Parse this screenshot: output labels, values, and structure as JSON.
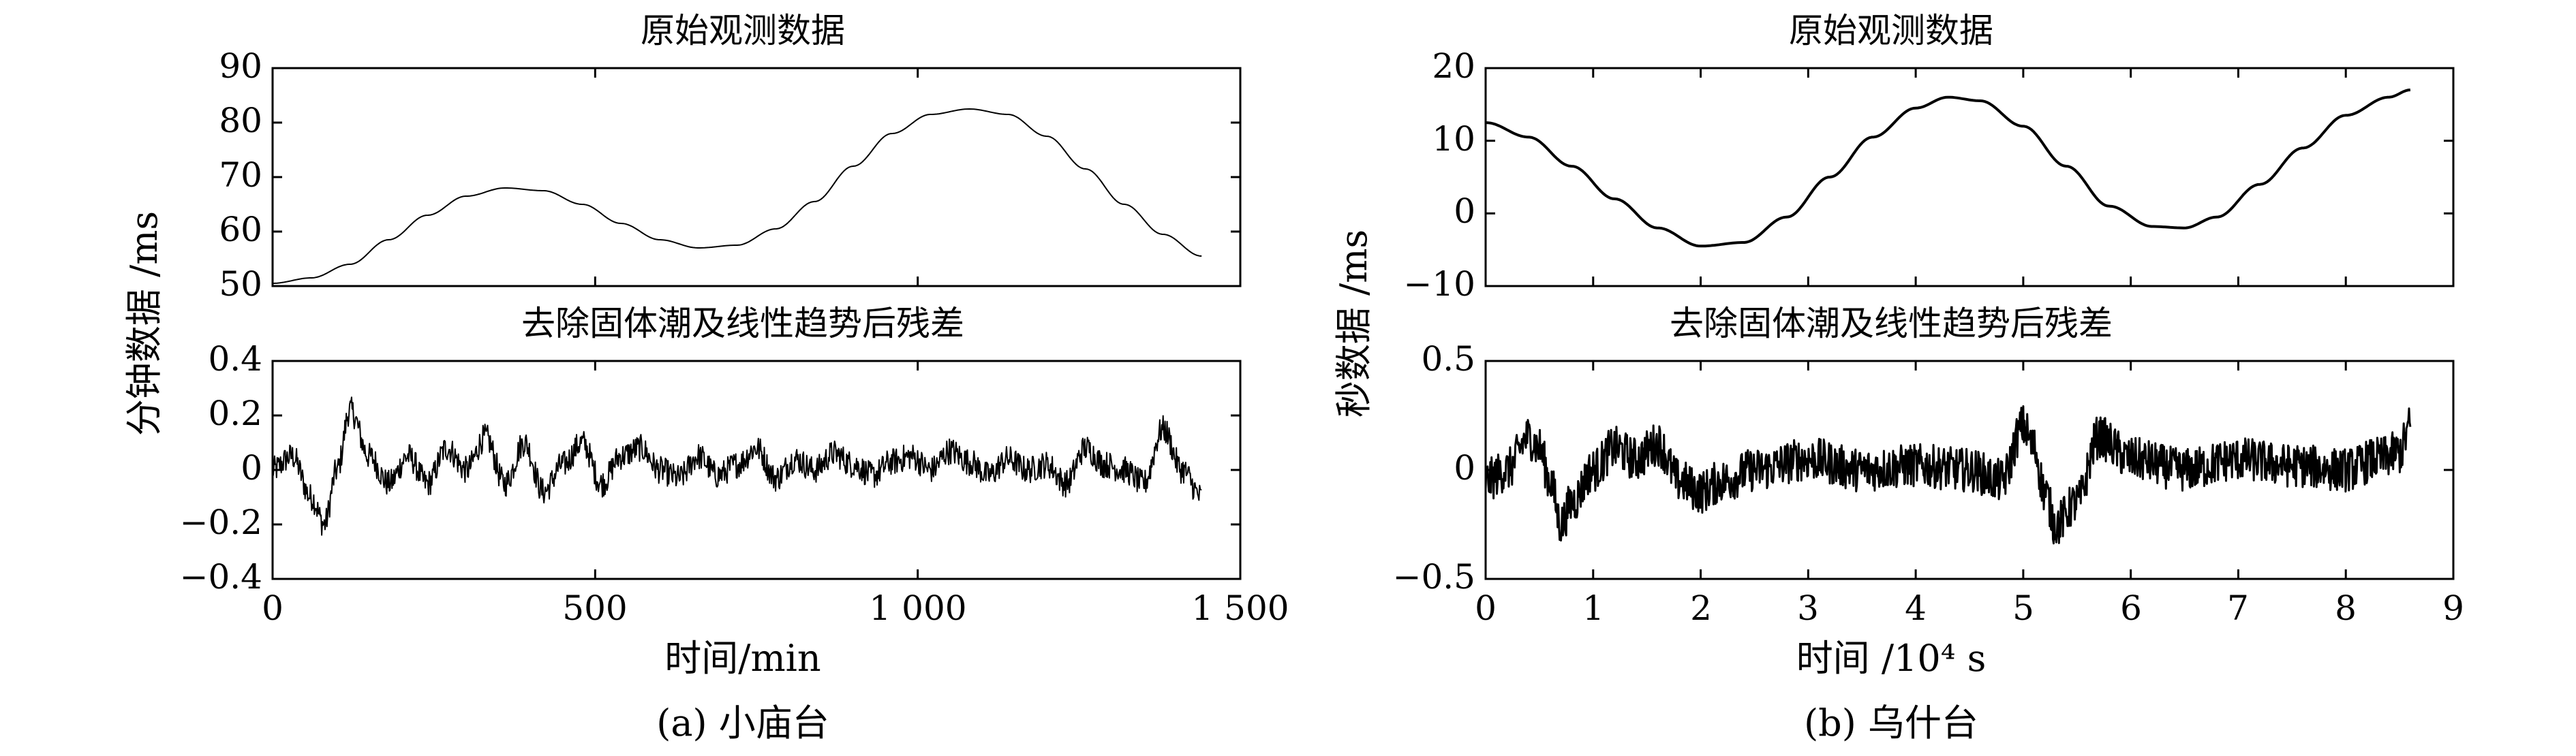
{
  "figures": [
    {
      "caption": "(a) 小庙台",
      "ylabel": "分钟数据 /ms",
      "xlabel": "时间/min",
      "x_ticks": [
        "0",
        "500",
        "1 000",
        "1 500"
      ]
    },
    {
      "caption": "(b) 乌什台",
      "ylabel": "秒数据 /ms",
      "xlabel": "时间 /10⁴ s",
      "x_ticks": [
        "0",
        "1",
        "2",
        "3",
        "4",
        "5",
        "6",
        "7",
        "8",
        "9"
      ]
    }
  ],
  "chart_data": [
    {
      "id": "a-top",
      "type": "line",
      "title": "原始观测数据",
      "xlim": [
        0,
        1500
      ],
      "ylim": [
        50,
        90
      ],
      "y_ticks": [
        "50",
        "60",
        "70",
        "80",
        "90"
      ],
      "series": [
        {
          "x": [
            0,
            60,
            120,
            180,
            240,
            300,
            360,
            420,
            480,
            540,
            600,
            660,
            720,
            780,
            840,
            900,
            960,
            1020,
            1080,
            1140,
            1200,
            1260,
            1320,
            1380,
            1440
          ],
          "y": [
            50.5,
            51.5,
            54.0,
            58.5,
            63.0,
            66.5,
            68.0,
            67.5,
            65.0,
            61.5,
            58.5,
            57.0,
            57.5,
            60.5,
            65.5,
            72.0,
            78.0,
            81.5,
            82.5,
            81.5,
            77.5,
            71.5,
            65.0,
            59.5,
            55.5
          ]
        }
      ]
    },
    {
      "id": "a-bottom",
      "type": "line",
      "title": "去除固体潮及线性趋势后残差",
      "xlim": [
        0,
        1500
      ],
      "ylim": [
        -0.4,
        0.4
      ],
      "y_ticks": [
        "−0.4",
        "−0.2",
        "0",
        "0.2",
        "0.4"
      ],
      "series": [
        {
          "x": [
            0,
            30,
            60,
            80,
            100,
            120,
            150,
            180,
            210,
            240,
            270,
            300,
            330,
            360,
            390,
            420,
            450,
            480,
            510,
            540,
            570,
            600,
            630,
            660,
            690,
            720,
            750,
            780,
            810,
            840,
            870,
            900,
            930,
            960,
            990,
            1020,
            1050,
            1080,
            1110,
            1140,
            1170,
            1200,
            1230,
            1260,
            1290,
            1320,
            1350,
            1380,
            1410,
            1440
          ],
          "y": [
            0.0,
            0.05,
            -0.1,
            -0.2,
            0.0,
            0.22,
            0.05,
            -0.05,
            0.05,
            -0.05,
            0.08,
            0.0,
            0.12,
            -0.05,
            0.1,
            -0.08,
            0.02,
            0.1,
            -0.05,
            0.05,
            0.08,
            0.0,
            -0.03,
            0.05,
            -0.02,
            0.02,
            0.08,
            -0.03,
            0.04,
            0.0,
            0.06,
            0.02,
            -0.02,
            0.03,
            0.05,
            0.0,
            0.07,
            0.03,
            -0.02,
            0.04,
            0.0,
            0.02,
            -0.05,
            0.08,
            0.02,
            0.0,
            -0.05,
            0.15,
            0.0,
            -0.1
          ],
          "noise_amplitude": 0.05
        }
      ]
    },
    {
      "id": "b-top",
      "type": "line",
      "title": "原始观测数据",
      "xlim": [
        0,
        9
      ],
      "ylim": [
        -10,
        20
      ],
      "y_ticks": [
        "−10",
        "0",
        "10",
        "20"
      ],
      "series": [
        {
          "x": [
            0,
            0.4,
            0.8,
            1.2,
            1.6,
            2.0,
            2.4,
            2.8,
            3.2,
            3.6,
            4.0,
            4.3,
            4.6,
            5.0,
            5.4,
            5.8,
            6.2,
            6.5,
            6.8,
            7.2,
            7.6,
            8.0,
            8.4,
            8.6
          ],
          "y": [
            12.5,
            10.5,
            6.5,
            2.0,
            -2.0,
            -4.5,
            -4.0,
            -0.5,
            5.0,
            10.5,
            14.5,
            16.0,
            15.5,
            12.0,
            6.5,
            1.0,
            -1.8,
            -2.0,
            -0.5,
            4.0,
            9.0,
            13.5,
            16.0,
            17.0
          ]
        }
      ]
    },
    {
      "id": "b-bottom",
      "type": "line",
      "title": "去除固体潮及线性趋势后残差",
      "xlim": [
        0,
        9
      ],
      "ylim": [
        -0.5,
        0.5
      ],
      "y_ticks": [
        "−0.5",
        "0",
        "0.5"
      ],
      "series": [
        {
          "x": [
            0,
            0.2,
            0.4,
            0.5,
            0.6,
            0.7,
            0.8,
            1.0,
            1.2,
            1.4,
            1.6,
            1.8,
            2.0,
            2.2,
            2.5,
            3.0,
            3.5,
            4.0,
            4.5,
            4.8,
            5.0,
            5.1,
            5.2,
            5.3,
            5.5,
            5.7,
            6.0,
            6.5,
            7.0,
            7.5,
            8.0,
            8.3,
            8.5,
            8.6
          ],
          "y": [
            -0.05,
            0.0,
            0.15,
            0.1,
            -0.05,
            -0.25,
            -0.15,
            0.0,
            0.1,
            0.05,
            0.12,
            -0.05,
            -0.1,
            -0.05,
            0.0,
            0.05,
            0.0,
            0.02,
            0.0,
            -0.05,
            0.2,
            0.1,
            -0.1,
            -0.25,
            -0.15,
            0.15,
            0.05,
            0.0,
            0.05,
            0.02,
            0.0,
            0.05,
            0.08,
            0.2
          ],
          "noise_amplitude": 0.1
        }
      ]
    }
  ]
}
